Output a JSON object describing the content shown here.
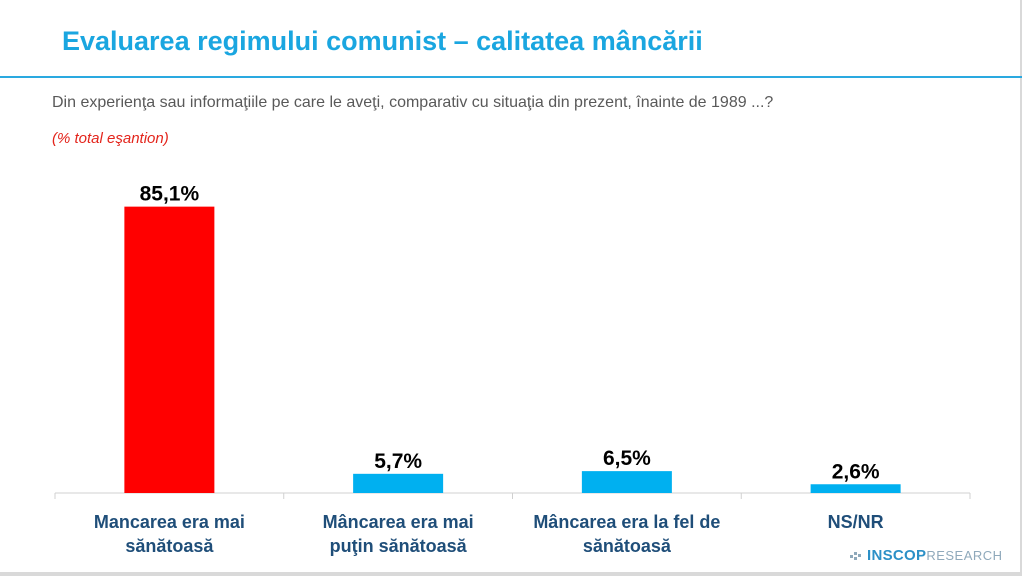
{
  "header": {
    "title": "Evaluarea regimului comunist – calitatea mâncării",
    "question": "Din experienţa sau informaţiile pe care le aveţi, comparativ cu situaţia din prezent, înainte de 1989 ...?",
    "subtitle": "(% total eşantion)"
  },
  "logo": {
    "bold": "INSCOP",
    "light": "RESEARCH"
  },
  "colors": {
    "title": "#1aa6e0",
    "highlight_bar": "#ff0000",
    "bar": "#00b0f0",
    "category_text": "#1f4e79"
  },
  "chart_data": {
    "type": "bar",
    "categories": [
      [
        "Mancarea era mai",
        "sănătoasă"
      ],
      [
        "Mâncarea era mai",
        "puţin sănătoasă"
      ],
      [
        "Mâncarea era la fel de",
        "sănătoasă"
      ],
      [
        "NS/NR"
      ]
    ],
    "values": [
      85.1,
      5.7,
      6.5,
      2.6
    ],
    "value_labels": [
      "85,1%",
      "5,7%",
      "6,5%",
      "2,6%"
    ],
    "bar_colors": [
      "#ff0000",
      "#00b0f0",
      "#00b0f0",
      "#00b0f0"
    ],
    "ylim": [
      0,
      100
    ],
    "grid": false,
    "legend": "none"
  }
}
